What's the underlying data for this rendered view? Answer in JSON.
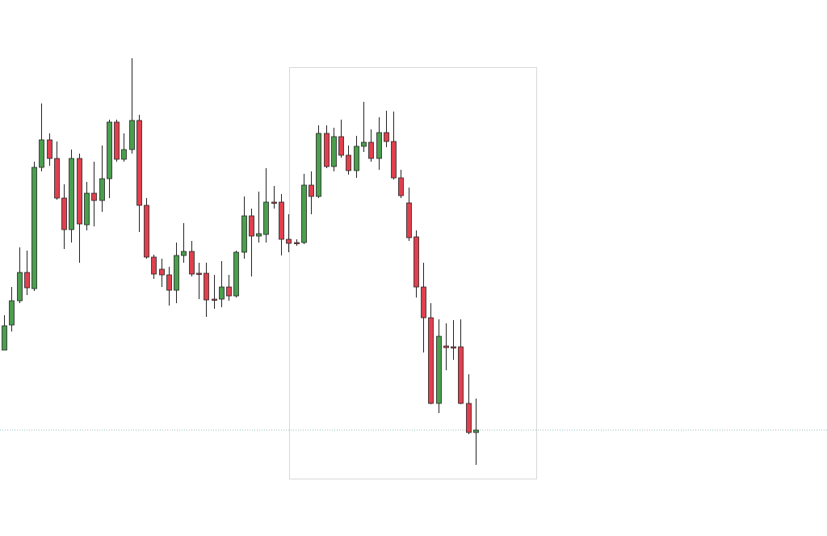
{
  "chart_data": {
    "type": "candlestick",
    "ylim": [
      0,
      663
    ],
    "up_color": "#4a9e4e",
    "down_color": "#e0404e",
    "wick_color": "#222222",
    "price_line": {
      "value": 131,
      "color": "#8fbcbb"
    },
    "open": [
      230,
      261,
      291,
      326,
      306,
      456,
      490,
      467,
      418,
      379,
      467,
      385,
      424,
      415,
      442,
      512,
      466,
      478,
      514,
      409,
      345,
      330,
      323,
      304,
      347,
      352,
      325,
      325,
      293,
      293,
      308,
      297,
      351,
      396,
      371,
      373,
      413,
      413,
      367,
      363,
      363,
      434,
      420,
      498,
      457,
      494,
      471,
      452,
      482,
      487,
      467,
      499,
      488,
      443,
      412,
      370,
      308,
      270,
      164,
      235,
      234,
      234,
      164,
      128
    ],
    "high": [
      273,
      308,
      357,
      353,
      463,
      535,
      498,
      488,
      435,
      478,
      473,
      438,
      463,
      483,
      515,
      515,
      498,
      591,
      521,
      418,
      348,
      343,
      333,
      363,
      387,
      365,
      338,
      338,
      323,
      340,
      323,
      353,
      420,
      405,
      426,
      455,
      433,
      423,
      398,
      367,
      448,
      451,
      508,
      508,
      505,
      515,
      483,
      495,
      537,
      503,
      518,
      526,
      525,
      453,
      431,
      378,
      338,
      288,
      268,
      263,
      267,
      268,
      200,
      170
    ],
    "low": [
      230,
      253,
      288,
      298,
      303,
      451,
      458,
      416,
      355,
      363,
      338,
      378,
      383,
      401,
      418,
      463,
      463,
      473,
      376,
      343,
      318,
      308,
      285,
      288,
      338,
      321,
      293,
      271,
      281,
      283,
      291,
      295,
      343,
      321,
      363,
      363,
      405,
      347,
      351,
      359,
      361,
      398,
      418,
      455,
      451,
      468,
      447,
      443,
      475,
      463,
      453,
      481,
      441,
      418,
      365,
      295,
      227,
      163,
      152,
      205,
      218,
      163,
      126,
      88
    ],
    "close": [
      260,
      291,
      326,
      307,
      456,
      490,
      467,
      418,
      379,
      467,
      386,
      424,
      415,
      442,
      512,
      466,
      478,
      514,
      409,
      345,
      324,
      323,
      304,
      347,
      352,
      324,
      324,
      292,
      292,
      308,
      297,
      351,
      396,
      371,
      374,
      413,
      412,
      367,
      362,
      362,
      434,
      420,
      498,
      457,
      494,
      471,
      452,
      482,
      487,
      467,
      499,
      488,
      443,
      421,
      369,
      308,
      270,
      164,
      247,
      233,
      233,
      164,
      128,
      131
    ]
  }
}
